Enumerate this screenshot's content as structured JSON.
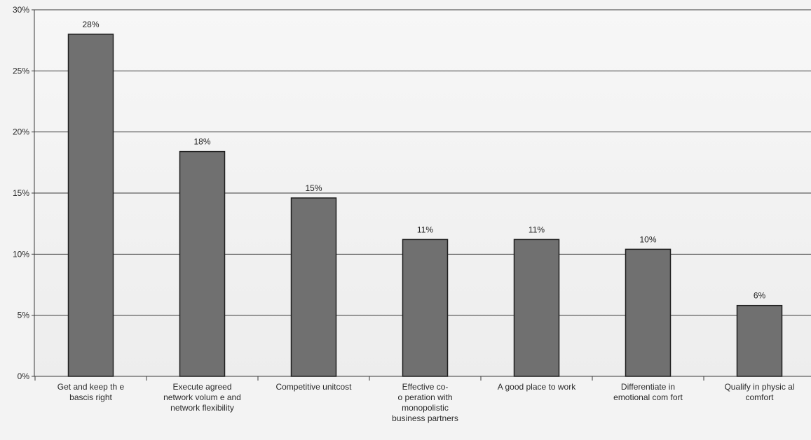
{
  "chart_data": {
    "type": "bar",
    "title": "",
    "xlabel": "",
    "ylabel": "",
    "ylim": [
      0,
      30
    ],
    "yticks": [
      "0%",
      "5%",
      "10%",
      "15%",
      "20%",
      "25%",
      "30%"
    ],
    "grid": true,
    "categories": [
      [
        "Get and keep th e",
        "bascis right"
      ],
      [
        "Execute agreed",
        "network volum e and",
        "network flexibility"
      ],
      [
        "Competitive unitcost"
      ],
      [
        "Effective co-",
        "o peration with",
        "monopolistic",
        "business partners"
      ],
      [
        "A good place to work"
      ],
      [
        "Differentiate in",
        "emotional com fort"
      ],
      [
        "Qualify in physic al",
        "comfort"
      ]
    ],
    "values": [
      28,
      18.4,
      14.6,
      11.2,
      11.2,
      10.4,
      5.8
    ],
    "data_labels": [
      "28%",
      "18%",
      "15%",
      "11%",
      "11%",
      "10%",
      "6%"
    ],
    "colors": {
      "bar": "#707070",
      "bar_stroke": "#1e1e1e",
      "grid": "#3a3a3a",
      "axis": "#3a3a3a",
      "background": "#f3f3f3"
    }
  }
}
